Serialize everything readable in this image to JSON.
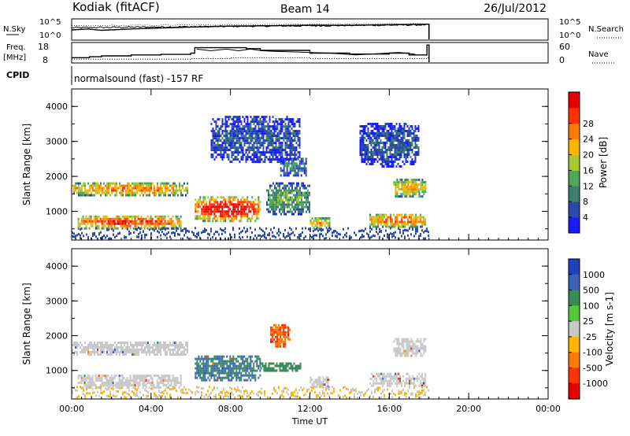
{
  "header": {
    "station": "Kodiak (fitACF)",
    "beam": "Beam 14",
    "date": "26/Jul/2012"
  },
  "top_panels": {
    "nsky_label": "N.Sky",
    "nsearch_label": "N.Search",
    "nsky_ticks": [
      "10^5",
      "10^0"
    ],
    "nsearch_ticks": [
      "10^5",
      "10^0"
    ],
    "freq_label": "Freq.",
    "freq_unit": "[MHz]",
    "freq_ticks": [
      "18",
      "8"
    ],
    "nave_label": "Nave",
    "nave_ticks": [
      "60",
      "0"
    ],
    "cpid_label": "CPID",
    "cpid_text": "normalsound (fast) -157 RF"
  },
  "chart_data": [
    {
      "type": "heatmap",
      "title": "",
      "xlabel": "Time UT",
      "ylabel": "Slant Range [km]",
      "x_ticks": [
        "00:00",
        "04:00",
        "08:00",
        "12:00",
        "16:00",
        "20:00",
        "00:00"
      ],
      "xlim_hours": [
        0,
        24
      ],
      "y_ticks": [
        "1000",
        "2000",
        "3000",
        "4000"
      ],
      "ylim_km": [
        180,
        4500
      ],
      "colorbar": {
        "label": "Power [dB]",
        "ticks": [
          "4",
          "8",
          "12",
          "16",
          "20",
          "24",
          "28"
        ],
        "range": [
          0,
          30
        ],
        "colors": [
          "#1a1aff",
          "#2a4aa8",
          "#3d7f6e",
          "#4fa85a",
          "#a8c832",
          "#ffb400",
          "#ff7800",
          "#ff3200",
          "#e60000"
        ]
      },
      "echo_regions": [
        {
          "t0": 0.0,
          "t1": 5.8,
          "r0": 1450,
          "r1": 1900,
          "peak_db": 22
        },
        {
          "t0": 0.3,
          "t1": 5.5,
          "r0": 500,
          "r1": 950,
          "peak_db": 26
        },
        {
          "t0": 6.2,
          "t1": 9.5,
          "r0": 700,
          "r1": 1500,
          "peak_db": 30
        },
        {
          "t0": 9.8,
          "t1": 12.0,
          "r0": 900,
          "r1": 1900,
          "peak_db": 12
        },
        {
          "t0": 10.5,
          "t1": 11.8,
          "r0": 2000,
          "r1": 2600,
          "peak_db": 8
        },
        {
          "t0": 12.0,
          "t1": 13.0,
          "r0": 500,
          "r1": 900,
          "peak_db": 20
        },
        {
          "t0": 15.0,
          "t1": 17.8,
          "r0": 550,
          "r1": 1000,
          "peak_db": 24
        },
        {
          "t0": 16.2,
          "t1": 17.8,
          "r0": 1400,
          "r1": 2000,
          "peak_db": 20
        },
        {
          "t0": 7.0,
          "t1": 11.5,
          "r0": 2400,
          "r1": 3800,
          "peak_db": 6
        },
        {
          "t0": 14.5,
          "t1": 17.5,
          "r0": 2300,
          "r1": 3600,
          "peak_db": 6
        }
      ]
    },
    {
      "type": "heatmap",
      "title": "",
      "xlabel": "Time UT",
      "ylabel": "Slant Range [km]",
      "x_ticks": [
        "00:00",
        "04:00",
        "08:00",
        "12:00",
        "16:00",
        "20:00",
        "00:00"
      ],
      "xlim_hours": [
        0,
        24
      ],
      "y_ticks": [
        "1000",
        "2000",
        "3000",
        "4000"
      ],
      "ylim_km": [
        180,
        4500
      ],
      "colorbar": {
        "label": "Velocity [m s-1]",
        "ticks": [
          "1000",
          "500",
          "100",
          "25",
          "-25",
          "-100",
          "-500",
          "-1000"
        ],
        "colors": [
          "#2040c0",
          "#3c62b8",
          "#3a8a5a",
          "#55c83c",
          "#c8c8c8",
          "#ffb400",
          "#ff7800",
          "#ff3200",
          "#e60000"
        ]
      },
      "echo_regions": [
        {
          "t0": 0.0,
          "t1": 5.8,
          "r0": 1450,
          "r1": 1900,
          "velocity": 0
        },
        {
          "t0": 0.3,
          "t1": 5.5,
          "r0": 500,
          "r1": 950,
          "velocity": 0
        },
        {
          "t0": 6.2,
          "t1": 9.5,
          "r0": 700,
          "r1": 1500,
          "velocity": 300
        },
        {
          "t0": 9.5,
          "t1": 11.5,
          "r0": 1000,
          "r1": 1300,
          "velocity": 100
        },
        {
          "t0": 12.0,
          "t1": 13.0,
          "r0": 500,
          "r1": 900,
          "velocity": 0
        },
        {
          "t0": 15.0,
          "t1": 17.8,
          "r0": 550,
          "r1": 1000,
          "velocity": 0
        },
        {
          "t0": 16.2,
          "t1": 17.8,
          "r0": 1400,
          "r1": 2000,
          "velocity": 0
        },
        {
          "t0": 10.0,
          "t1": 11.0,
          "r0": 1700,
          "r1": 2400,
          "velocity": -300
        }
      ]
    }
  ],
  "overlay_series": {
    "nsky_steps": [
      [
        0.0,
        0.5
      ],
      [
        0.8,
        0.55
      ],
      [
        1.5,
        0.48
      ],
      [
        3.0,
        0.55
      ],
      [
        4.5,
        0.6
      ],
      [
        6.0,
        0.65
      ],
      [
        8.0,
        0.7
      ],
      [
        10.0,
        0.72
      ],
      [
        12.0,
        0.75
      ],
      [
        14.0,
        0.74
      ],
      [
        16.0,
        0.78
      ],
      [
        18.0,
        0.8
      ]
    ],
    "freq_steps": [
      [
        0.0,
        10.5
      ],
      [
        0.9,
        11.0
      ],
      [
        1.5,
        11.5
      ],
      [
        3.0,
        12.0
      ],
      [
        4.5,
        12.3
      ],
      [
        6.0,
        13.0
      ],
      [
        6.2,
        16.0
      ],
      [
        8.8,
        15.5
      ],
      [
        9.5,
        14.5
      ],
      [
        12.0,
        13.0
      ],
      [
        14.0,
        12.5
      ],
      [
        16.0,
        13.0
      ],
      [
        17.0,
        12.0
      ],
      [
        17.9,
        17.5
      ],
      [
        18.0,
        8.0
      ]
    ],
    "nave_steps": [
      [
        0.0,
        10
      ],
      [
        6.0,
        12
      ],
      [
        8.0,
        15
      ],
      [
        12.0,
        12
      ],
      [
        17.9,
        14
      ],
      [
        18.0,
        0
      ]
    ]
  }
}
